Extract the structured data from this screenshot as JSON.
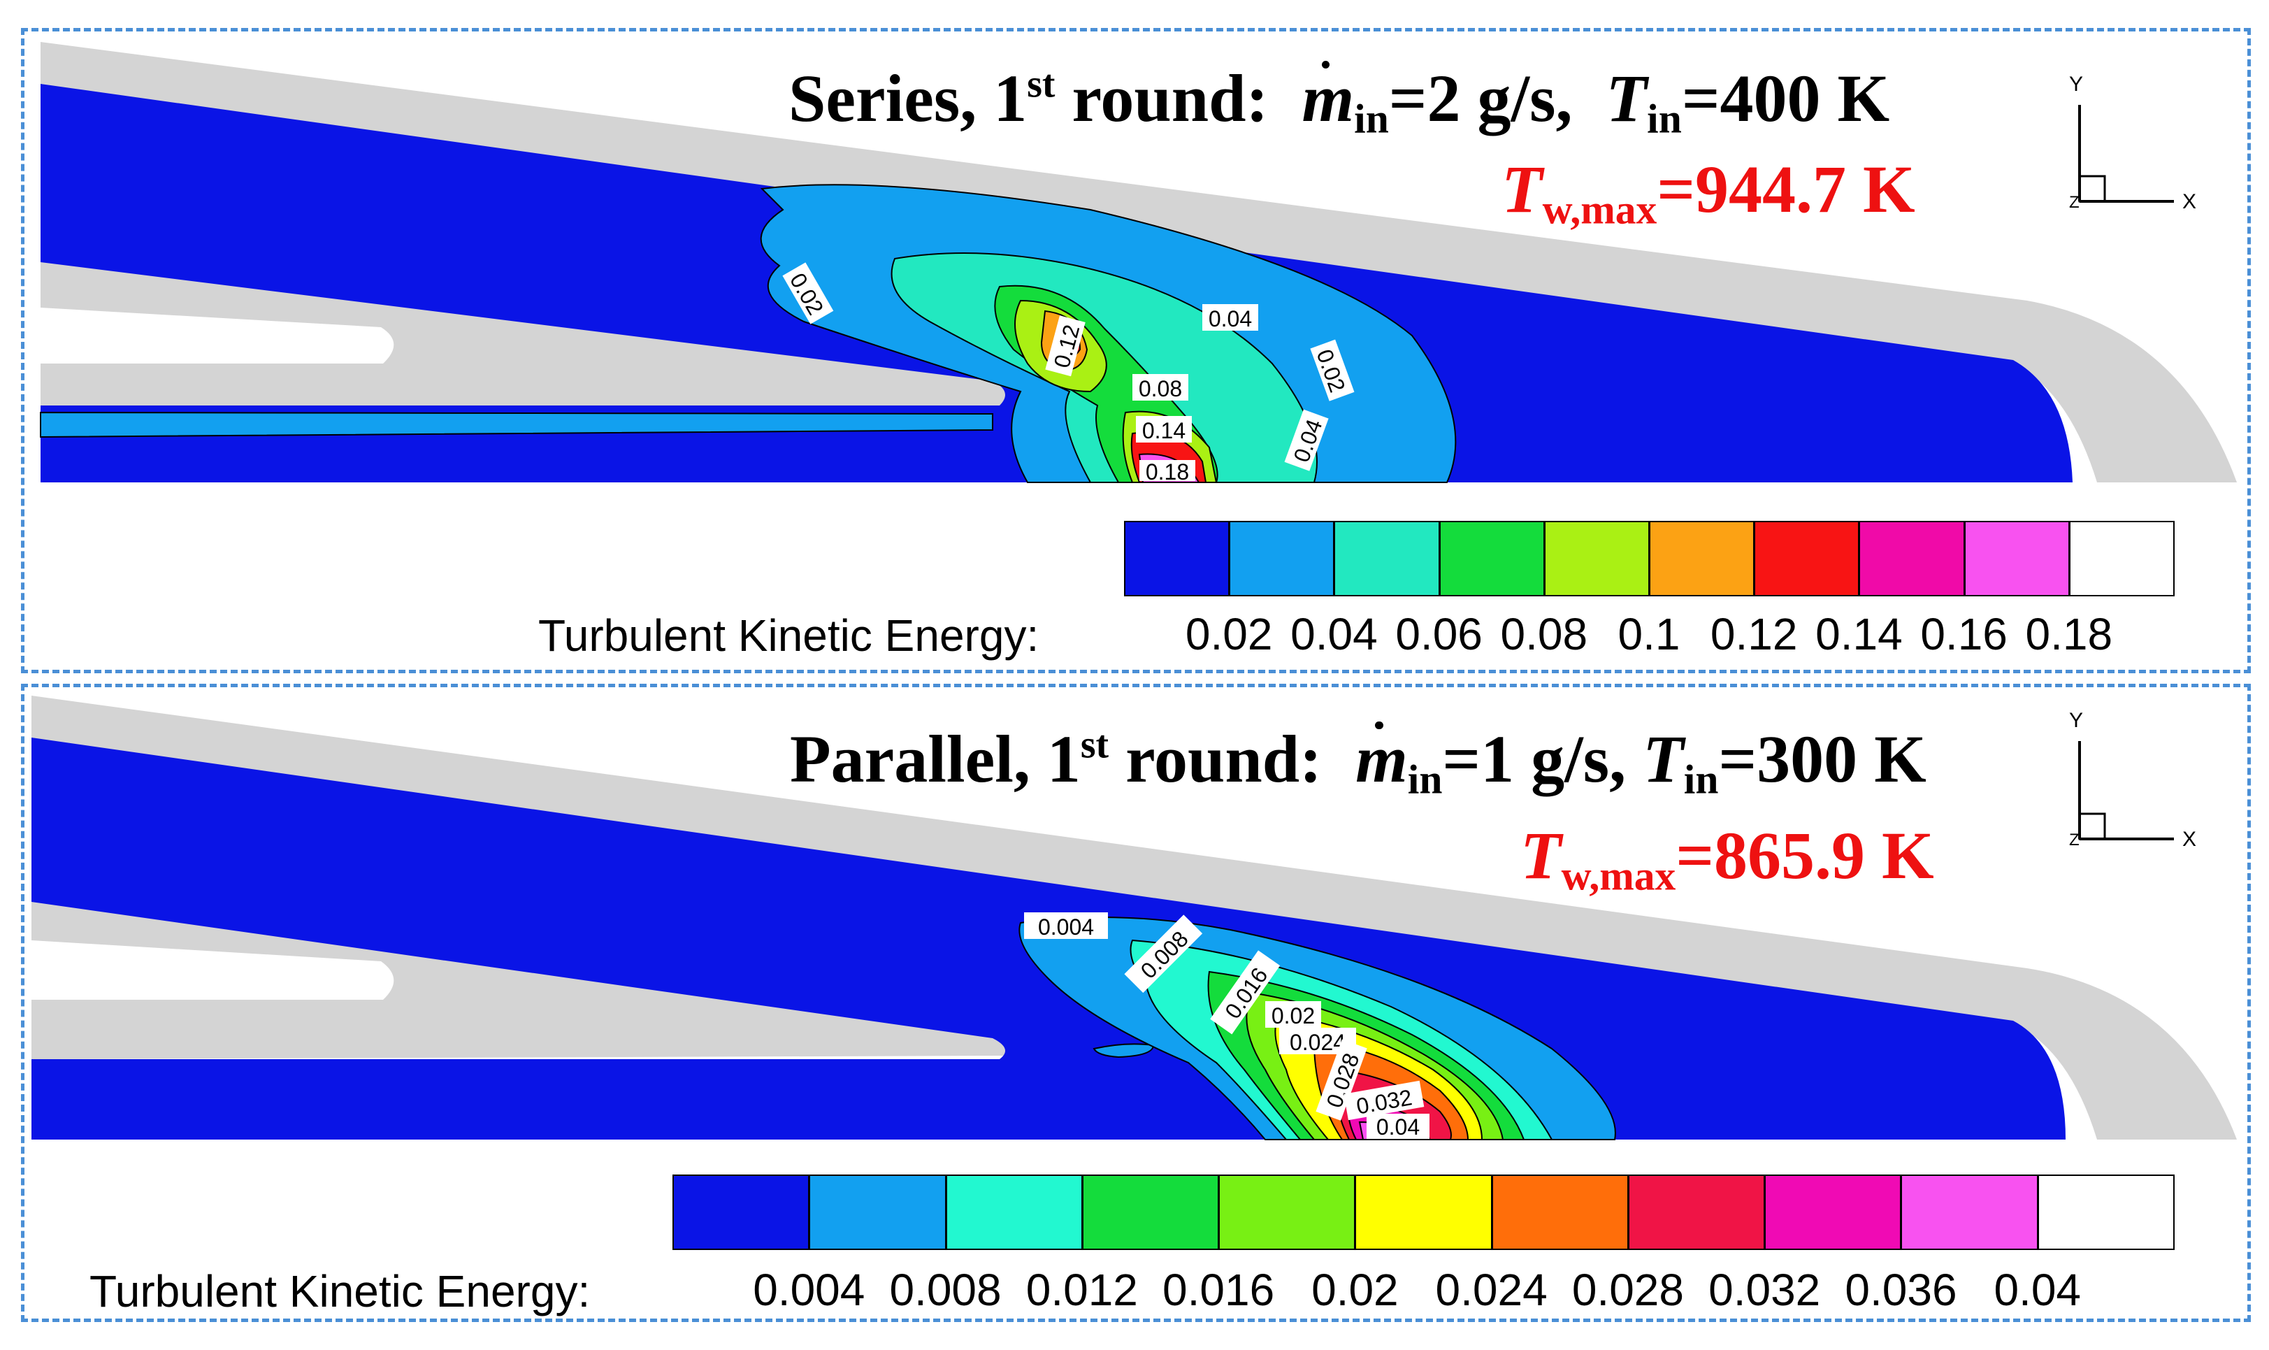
{
  "panels": [
    {
      "headline": {
        "prefix": "Series, 1",
        "sup": "st",
        "middle": " round:  ",
        "mdot": "m",
        "mdot_sub": "in",
        "mass": "=2 g/s,  ",
        "temp_sym": "T",
        "temp_sub": "in",
        "temp_val": "=400 K"
      },
      "tw": {
        "sym": "T",
        "sub": "w,max",
        "val": "=944.7 K"
      },
      "contour_labels": [
        "0.02",
        "0.12",
        "0.04",
        "0.02",
        "0.08",
        "0.14",
        "0.04",
        "0.18"
      ],
      "colorbar": {
        "title": "Turbulent Kinetic Energy:",
        "colors": [
          "#0a14e6",
          "#12a0f0",
          "#22e8c0",
          "#14dc3c",
          "#aaf014",
          "#fca214",
          "#f81414",
          "#f00aa8",
          "#f852f0",
          "#ffffff"
        ],
        "labels": [
          "0.02",
          "0.04",
          "0.06",
          "0.08",
          "0.1",
          "0.12",
          "0.14",
          "0.16",
          "0.18"
        ]
      },
      "axes": {
        "y": "Y",
        "x": "X",
        "z": "Z"
      }
    },
    {
      "headline": {
        "prefix": "Parallel, 1",
        "sup": "st",
        "middle": " round:  ",
        "mdot": "m",
        "mdot_sub": "in",
        "mass": "=1 g/s, ",
        "temp_sym": "T",
        "temp_sub": "in",
        "temp_val": "=300 K"
      },
      "tw": {
        "sym": "T",
        "sub": "w,max",
        "val": "=865.9 K"
      },
      "contour_labels": [
        "0.004",
        "0.008",
        "0.016",
        "0.02",
        "0.024",
        "0.028",
        "0.032",
        "0.04"
      ],
      "colorbar": {
        "title": "Turbulent Kinetic Energy:",
        "colors": [
          "#0a14e6",
          "#12a0f0",
          "#22f8d0",
          "#14dc3c",
          "#78f014",
          "#ffff00",
          "#ff6e0a",
          "#f01446",
          "#f00ab4",
          "#f852f0",
          "#ffffff"
        ],
        "labels": [
          "0.004",
          "0.008",
          "0.012",
          "0.016",
          "0.02",
          "0.024",
          "0.028",
          "0.032",
          "0.036",
          "0.04"
        ]
      },
      "axes": {
        "y": "Y",
        "x": "X",
        "z": "Z"
      }
    }
  ]
}
